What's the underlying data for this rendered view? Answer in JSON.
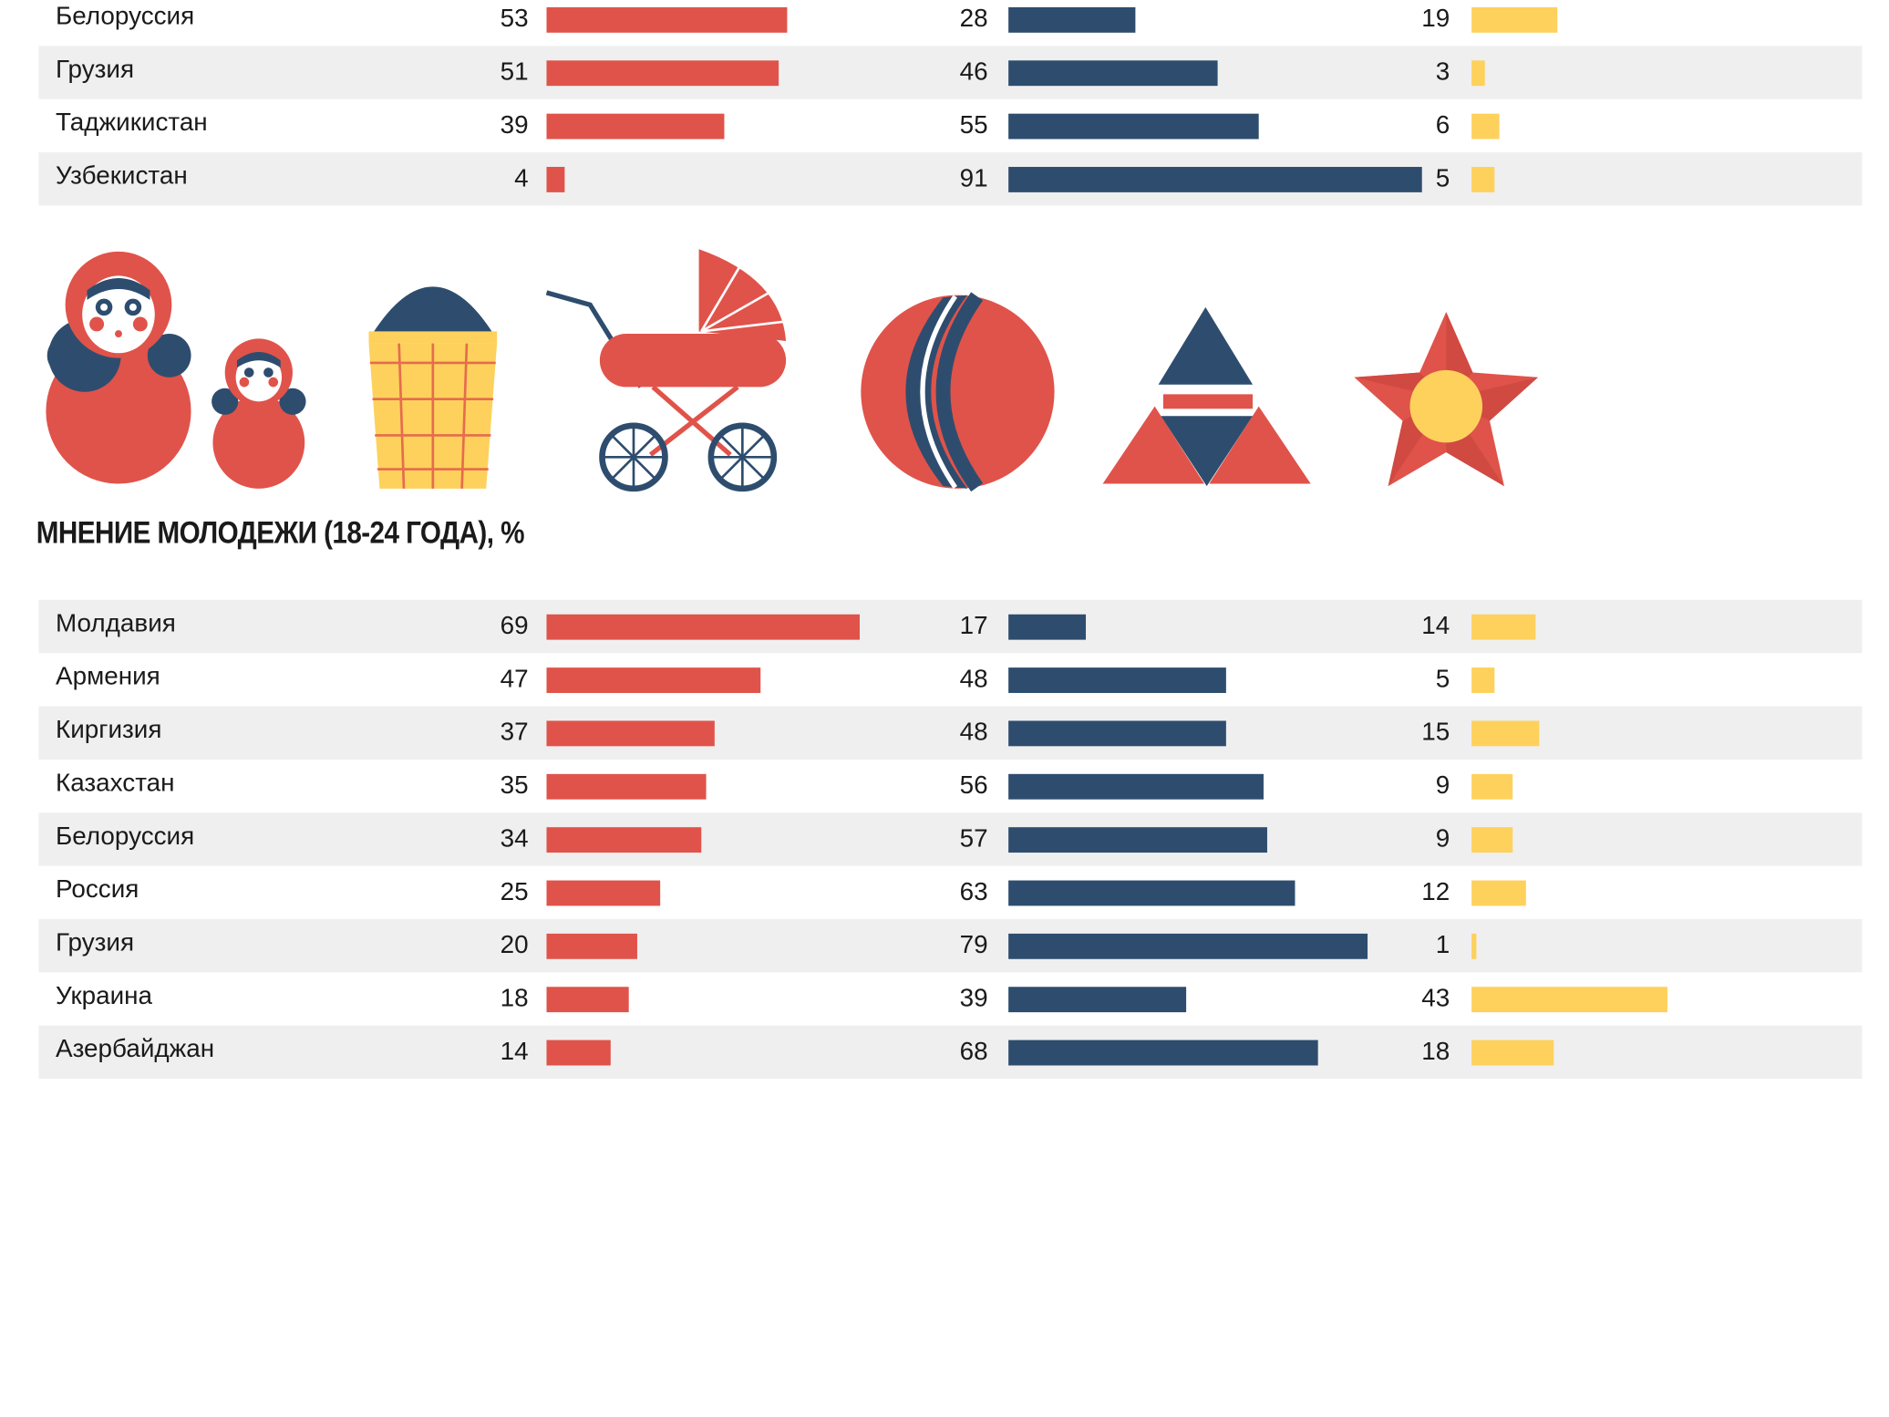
{
  "colors": {
    "red": "#e0534a",
    "blue": "#2e4d6e",
    "yellow": "#fdd15c",
    "row_shade": "#efefef"
  },
  "icons": [
    "matryoshka-icon",
    "ice-cream-icon",
    "baby-carriage-icon",
    "ball-icon",
    "triangle-pyramid-icon",
    "star-icon"
  ],
  "chart_data": [
    {
      "type": "bar",
      "title": "",
      "series_colors": [
        "#e0534a",
        "#2e4d6e",
        "#fdd15c"
      ],
      "rows": [
        {
          "country": "Белоруссия",
          "values": [
            53,
            28,
            19
          ]
        },
        {
          "country": "Грузия",
          "values": [
            51,
            46,
            3
          ]
        },
        {
          "country": "Таджикистан",
          "values": [
            39,
            55,
            6
          ]
        },
        {
          "country": "Узбекистан",
          "values": [
            4,
            91,
            5
          ]
        }
      ]
    },
    {
      "type": "bar",
      "title": "МНЕНИЕ МОЛОДЕЖИ (18-24 ГОДА), %",
      "series_colors": [
        "#e0534a",
        "#2e4d6e",
        "#fdd15c"
      ],
      "rows": [
        {
          "country": "Молдавия",
          "values": [
            69,
            17,
            14
          ]
        },
        {
          "country": "Армения",
          "values": [
            47,
            48,
            5
          ]
        },
        {
          "country": "Киргизия",
          "values": [
            37,
            48,
            15
          ]
        },
        {
          "country": "Казахстан",
          "values": [
            35,
            56,
            9
          ]
        },
        {
          "country": "Белоруссия",
          "values": [
            34,
            57,
            9
          ]
        },
        {
          "country": "Россия",
          "values": [
            25,
            63,
            12
          ]
        },
        {
          "country": "Грузия",
          "values": [
            20,
            79,
            1
          ]
        },
        {
          "country": "Украина",
          "values": [
            18,
            39,
            43
          ]
        },
        {
          "country": "Азербайджан",
          "values": [
            14,
            68,
            18
          ]
        }
      ]
    }
  ]
}
